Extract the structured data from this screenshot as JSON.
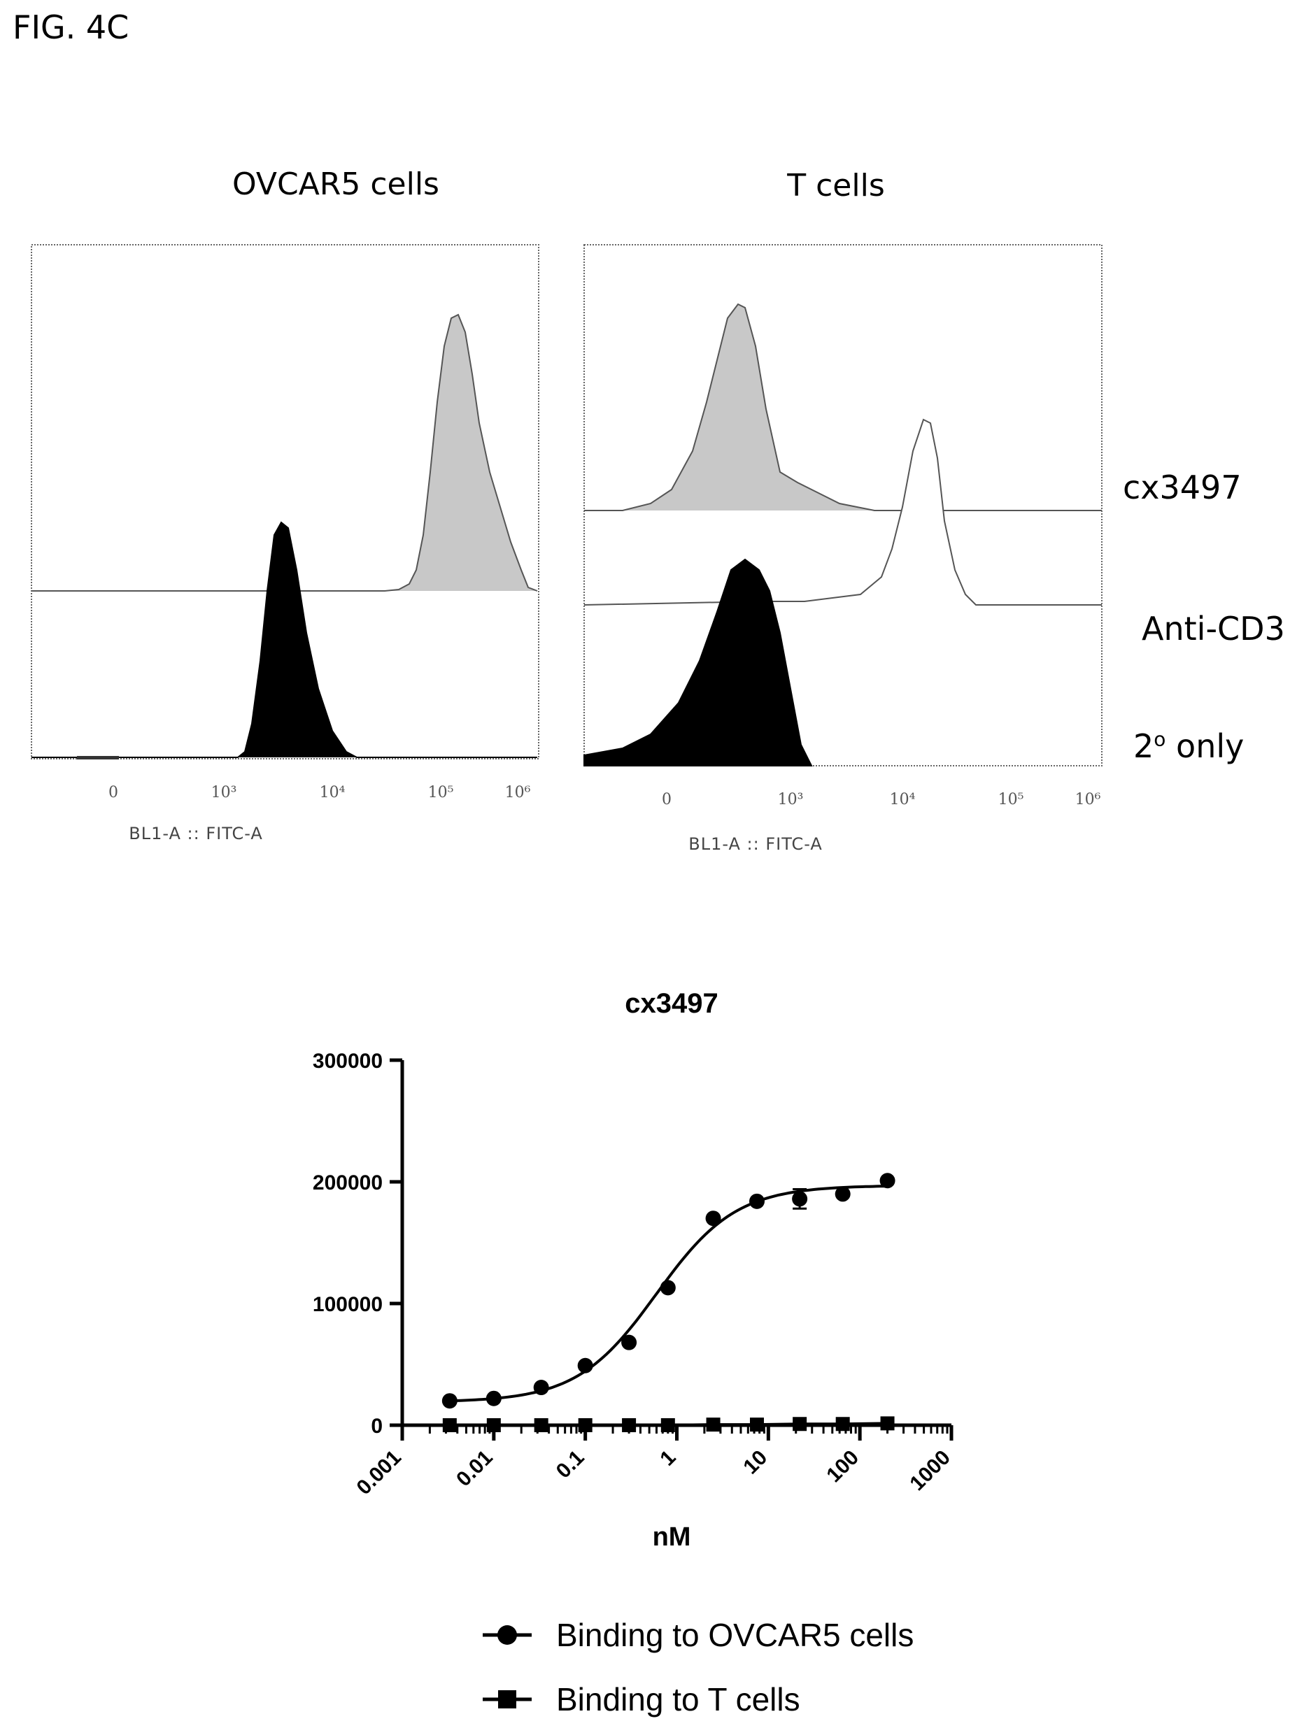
{
  "figure_label": "FIG. 4C",
  "histograms": {
    "panels": [
      {
        "title": "OVCAR5 cells",
        "x_ticks": [
          "0",
          "10³",
          "10⁴",
          "10⁵",
          "10⁶"
        ],
        "x_label": "BL1-A :: FITC-A"
      },
      {
        "title": "T cells",
        "x_ticks": [
          "0",
          "10³",
          "10⁴",
          "10⁵",
          "10⁶"
        ],
        "x_label": "BL1-A :: FITC-A"
      }
    ],
    "row_labels": {
      "cx3497": "cx3497",
      "anti_cd3": "Anti-CD3",
      "secondary_base": "2",
      "secondary_sup": "o",
      "secondary_rest": " only"
    },
    "colors": {
      "cx3497_fill": "#c8c8c8",
      "secondary_fill": "#000000",
      "anti_cd3_fill": "#ffffff"
    }
  },
  "chart_data": {
    "type": "scatter",
    "title": "cx3497",
    "xlabel": "nM",
    "ylabel": "",
    "x_scale": "log",
    "xlim": [
      0.001,
      1000
    ],
    "ylim": [
      0,
      300000
    ],
    "x_ticks": [
      "0.001",
      "0.01",
      "0.1",
      "1",
      "10",
      "100",
      "1000"
    ],
    "y_ticks": [
      "0",
      "100000",
      "200000",
      "300000"
    ],
    "legend_position": "bottom",
    "series": [
      {
        "name": "Binding to OVCAR5 cells",
        "marker": "circle",
        "fit": "sigmoidal",
        "x": [
          0.0033,
          0.01,
          0.033,
          0.1,
          0.3,
          0.8,
          2.5,
          7.5,
          22,
          65,
          200
        ],
        "y": [
          20000,
          22000,
          31000,
          49000,
          68000,
          113000,
          170000,
          184000,
          186000,
          190000,
          201000
        ]
      },
      {
        "name": "Binding to T cells",
        "marker": "square",
        "fit": "line",
        "x": [
          0.0033,
          0.01,
          0.033,
          0.1,
          0.3,
          0.8,
          2.5,
          7.5,
          22,
          65,
          200
        ],
        "y": [
          0,
          0,
          0,
          0,
          0,
          0,
          500,
          500,
          1000,
          1000,
          1500
        ]
      }
    ]
  }
}
